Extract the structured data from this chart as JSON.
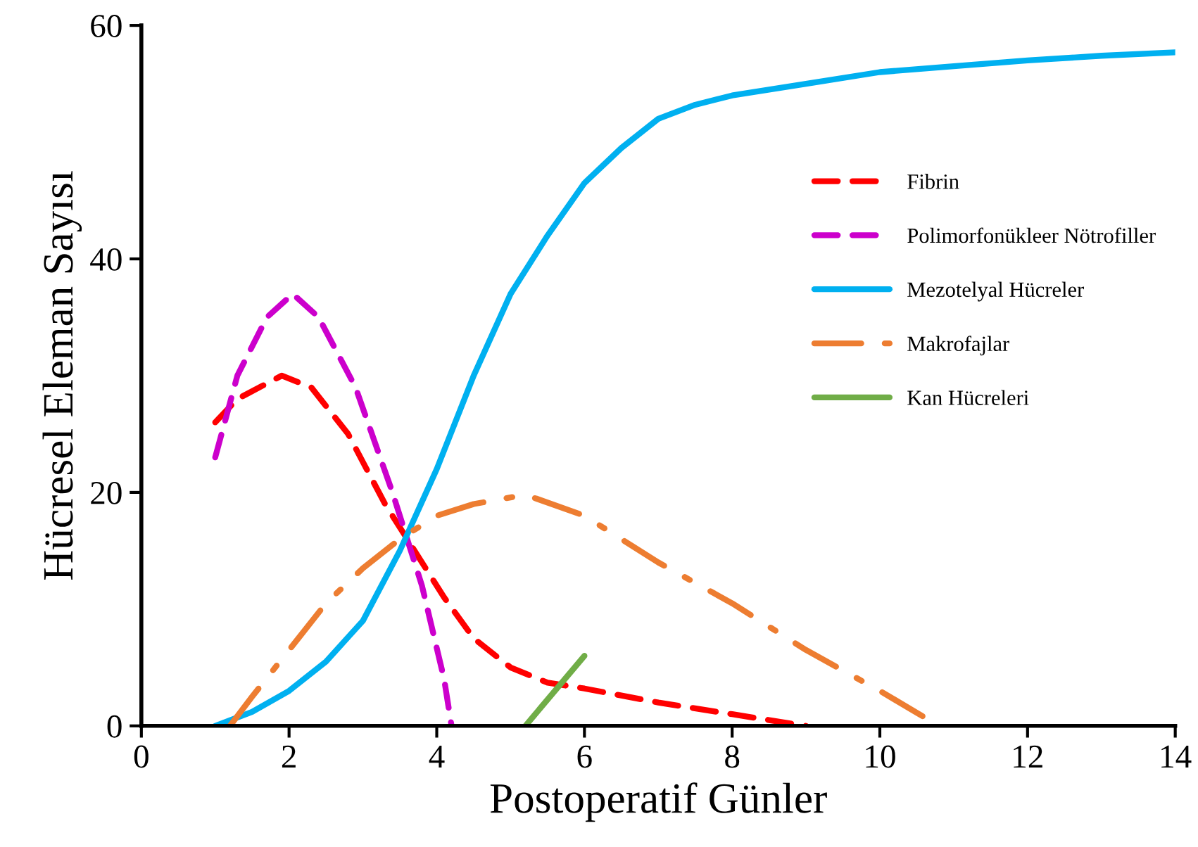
{
  "chart_data": {
    "type": "line",
    "xlabel": "Postoperatif Günler",
    "ylabel": "Hücresel Eleman Sayısı",
    "xlim": [
      0,
      14
    ],
    "xticks": [
      0,
      2,
      4,
      6,
      8,
      10,
      12,
      14
    ],
    "ylim": [
      0,
      60
    ],
    "yticks": [
      0,
      20,
      40,
      60
    ],
    "grid": false,
    "legend": "right",
    "marker": "none",
    "series": [
      {
        "name": "Fibrin",
        "color": "#ff0000",
        "line_style": "dashed",
        "x": [
          1,
          1.3,
          1.9,
          2.3,
          2.8,
          3.3,
          3.7,
          4.1,
          4.5,
          5,
          5.5,
          6,
          7,
          8,
          9
        ],
        "values": [
          26,
          28,
          30,
          29,
          25,
          19,
          15,
          11,
          7.5,
          5,
          3.7,
          3.2,
          2,
          1,
          0
        ]
      },
      {
        "name": "Polimorfonükleer Nötrofiller",
        "color": "#cc00cc",
        "line_style": "dashed",
        "x": [
          1,
          1.3,
          1.7,
          2.05,
          2.4,
          2.9,
          3.4,
          3.8,
          4.1,
          4.2
        ],
        "values": [
          23,
          30,
          35,
          37,
          35,
          29,
          20,
          12,
          4,
          0
        ]
      },
      {
        "name": "Mezotelyal Hücreler",
        "color": "#00b0f0",
        "line_style": "solid",
        "x": [
          1,
          1.5,
          2,
          2.5,
          3,
          3.5,
          4,
          4.5,
          5,
          5.5,
          6,
          6.5,
          7,
          7.5,
          8,
          9,
          10,
          11,
          12,
          13,
          14
        ],
        "values": [
          0,
          1.2,
          3,
          5.5,
          9,
          15,
          22,
          30,
          37,
          42,
          46.5,
          49.5,
          52,
          53.2,
          54,
          55,
          56,
          56.5,
          57,
          57.4,
          57.7
        ]
      },
      {
        "name": "Makrofajlar",
        "color": "#ed7d31",
        "line_style": "dashdot",
        "x": [
          1.2,
          1.5,
          2,
          2.5,
          3,
          3.5,
          4,
          4.5,
          5.2,
          6,
          7,
          8,
          9,
          10,
          10.8
        ],
        "values": [
          0,
          2.5,
          6.5,
          10.5,
          13.5,
          16,
          18,
          19,
          19.8,
          18,
          14,
          10.5,
          6.5,
          3,
          0
        ]
      },
      {
        "name": "Kan Hücreleri",
        "color": "#70ad47",
        "line_style": "solid",
        "x": [
          5.2,
          6
        ],
        "values": [
          0,
          6
        ]
      }
    ]
  }
}
